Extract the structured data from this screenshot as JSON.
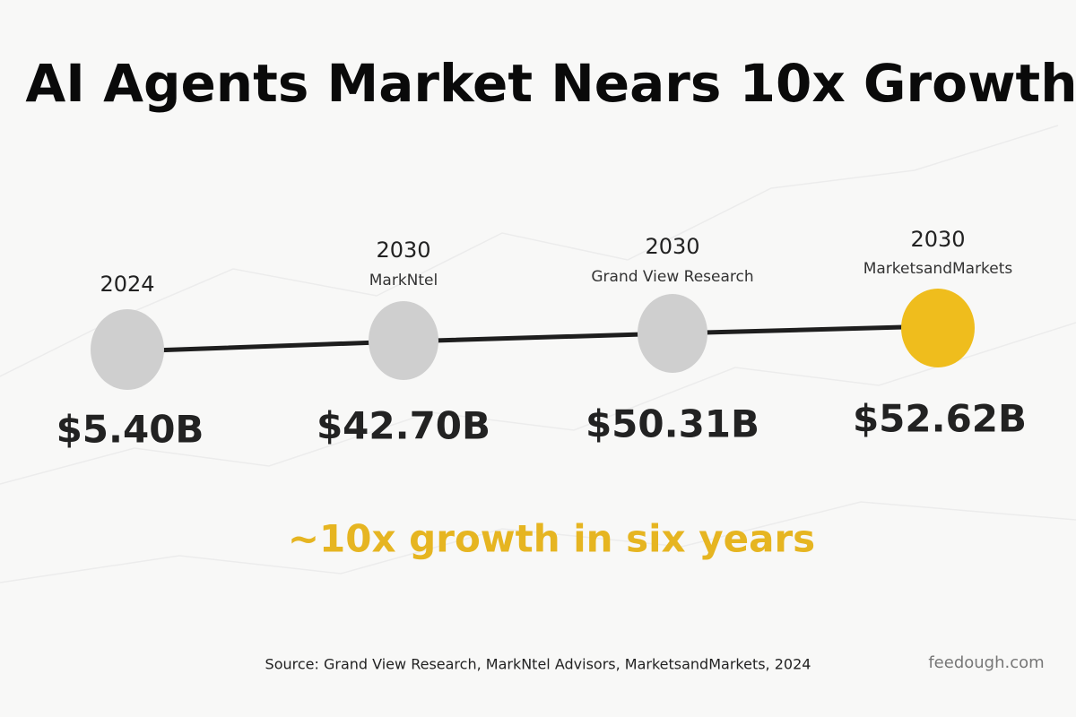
{
  "title": "AI Agents Market Nears 10x Growth",
  "nodes": [
    {
      "year": "2024",
      "value": "$5.40B"
    },
    {
      "year": "2030",
      "source": "MarkNtel",
      "value": "$42.70B"
    },
    {
      "year": "2030",
      "source": "Grand View Research",
      "value": "$50.31B"
    },
    {
      "year": "2030",
      "source": "MarketsandMarkets",
      "value": "$52.62B"
    }
  ],
  "tagline": "~10x growth in six years",
  "footer": {
    "source": "Source: Grand View Research, MarkNtel Advisors, MarketsandMarkets, 2024",
    "brand": "feedough.com"
  }
}
